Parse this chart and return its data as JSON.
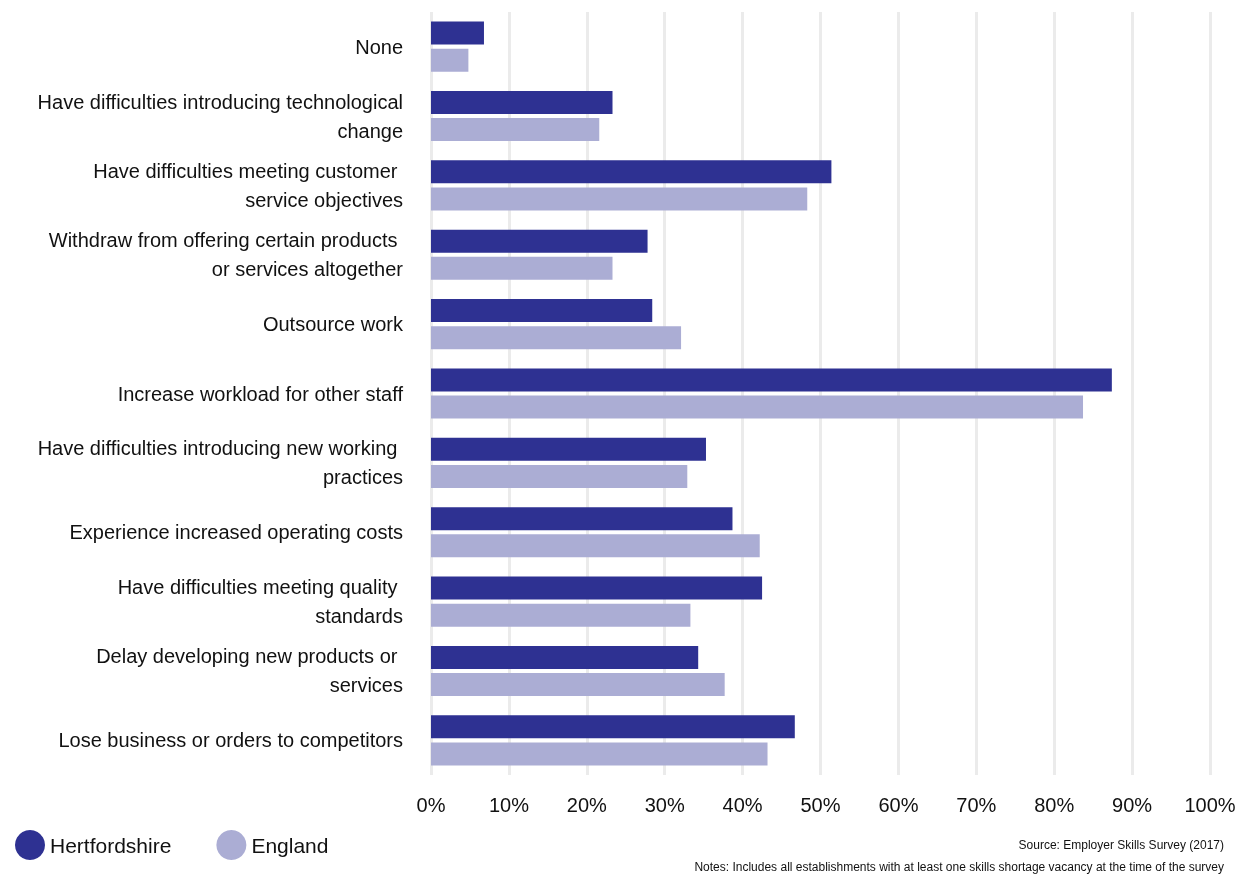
{
  "chart_data": {
    "type": "bar",
    "orientation": "horizontal",
    "categories": [
      "None",
      "Have difficulties introducing technological change",
      "Have difficulties meeting customer service objectives",
      "Withdraw from offering certain products or services altogether",
      "Outsource work",
      "Increase workload for other staff",
      "Have difficulties introducing new working practices",
      "Experience increased operating costs",
      "Have difficulties meeting quality standards",
      "Delay developing new products or services",
      "Lose business or orders to competitors"
    ],
    "series": [
      {
        "name": "Hertfordshire",
        "color": "#2e3192",
        "values": [
          6.8,
          23.3,
          51.4,
          27.8,
          28.4,
          87.4,
          35.3,
          38.7,
          42.5,
          34.3,
          46.7
        ]
      },
      {
        "name": "England",
        "color": "#abadd4",
        "values": [
          4.8,
          21.6,
          48.3,
          23.3,
          32.1,
          83.7,
          32.9,
          42.2,
          33.3,
          37.7,
          43.2
        ]
      }
    ],
    "xlim": [
      0,
      100
    ],
    "xticks": [
      {
        "value": 0,
        "label": "0%"
      },
      {
        "value": 10,
        "label": "10%"
      },
      {
        "value": 20,
        "label": "20%"
      },
      {
        "value": 30,
        "label": "30%"
      },
      {
        "value": 40,
        "label": "40%"
      },
      {
        "value": 50,
        "label": "50%"
      },
      {
        "value": 60,
        "label": "60%"
      },
      {
        "value": 70,
        "label": "70%"
      },
      {
        "value": 80,
        "label": "80%"
      },
      {
        "value": 90,
        "label": "90%"
      },
      {
        "value": 100,
        "label": "100%"
      }
    ],
    "grid": "x",
    "legend": "bottom left",
    "annotations": [
      "Source: Employer Skills Survey (2017)",
      "Notes: Includes all establishments with at least one skills shortage vacancy at the time of the survey"
    ]
  }
}
